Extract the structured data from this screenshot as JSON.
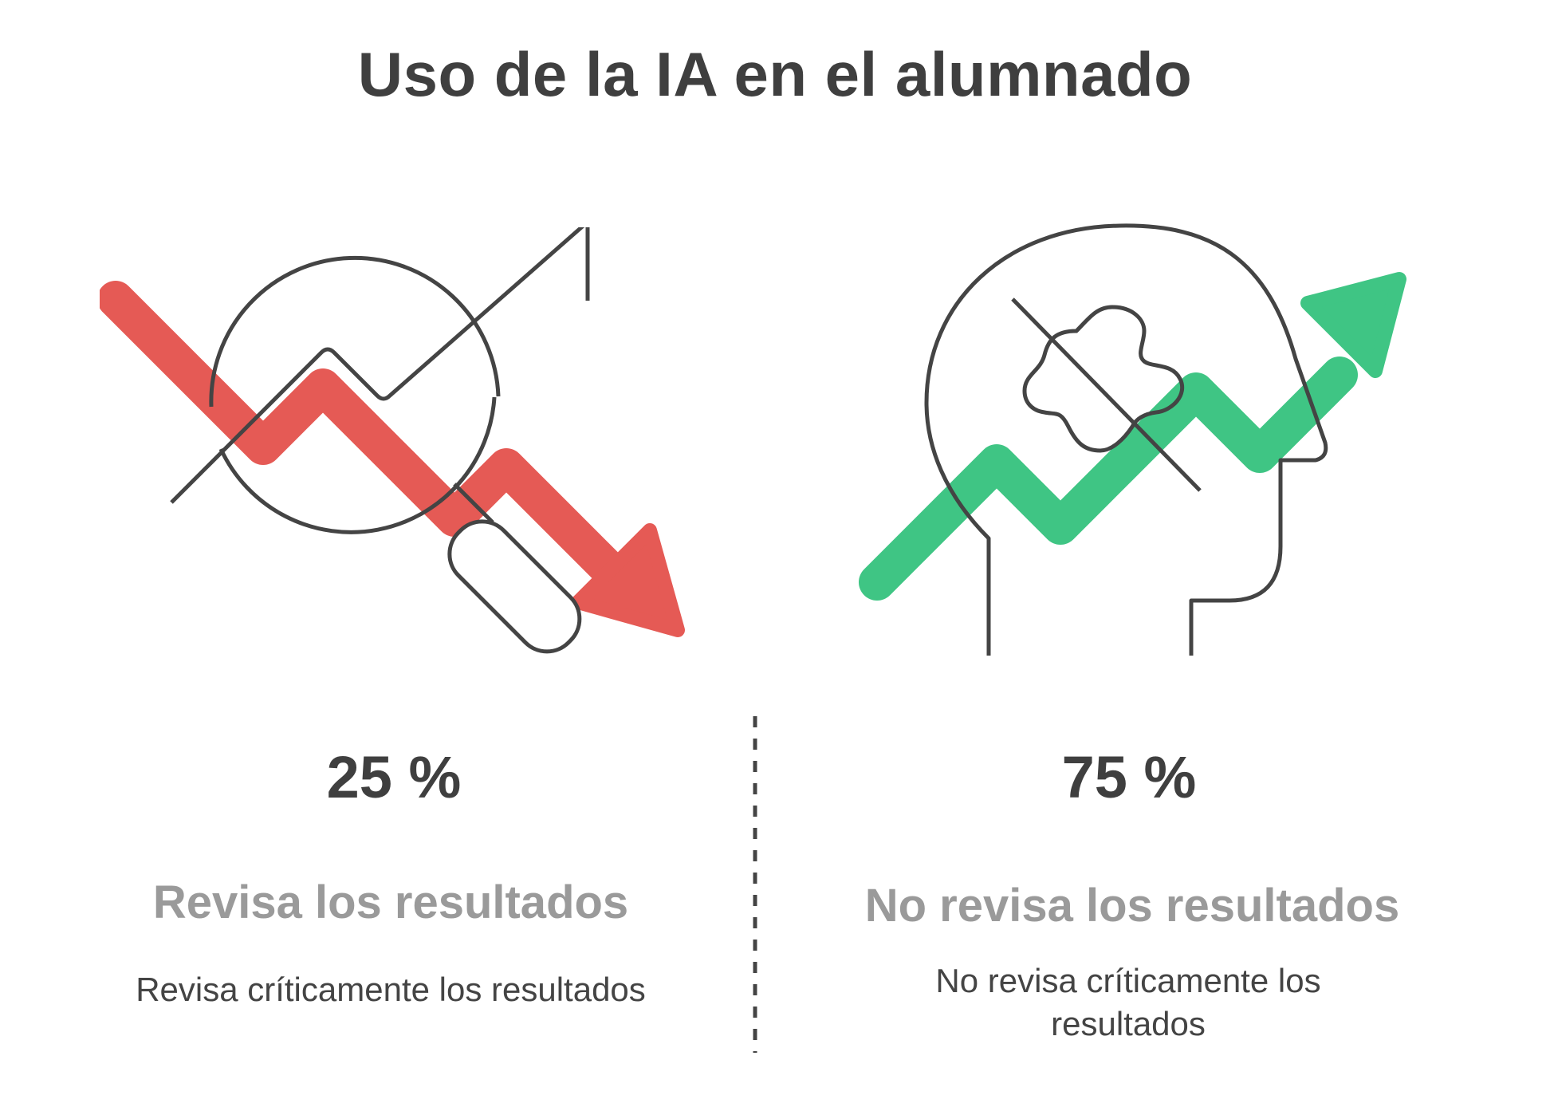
{
  "title": "Uso de la IA en el alumnado",
  "left": {
    "percentage": "25 %",
    "heading": "Revisa los resultados",
    "description": "Revisa críticamente los resultados",
    "icon": "declining-chart-magnifier-icon",
    "accent_color": "#e55a55",
    "value": 25
  },
  "right": {
    "percentage": "75 %",
    "heading": "No revisa los resultados",
    "description": "No revisa críticamente los resultados",
    "icon": "rising-chart-head-icon",
    "accent_color": "#3fc584",
    "value": 75
  },
  "colors": {
    "title": "#3f3f3f",
    "heading": "#9a9a9a",
    "line": "#444444"
  }
}
